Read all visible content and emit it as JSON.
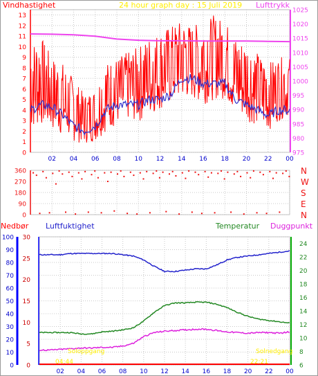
{
  "colors": {
    "wind": "#ff0000",
    "wind_avg": "#3333cc",
    "pressure": "#ee44ee",
    "direction": "#ee1111",
    "humidity": "#2222cc",
    "temperature": "#228822",
    "dewpoint": "#dd22dd",
    "rain": "#ff0000",
    "rain_axis": "#0000ff",
    "axis_green": "#00aa00",
    "sun_text": "#ffee00",
    "grid": "#c8c8c8"
  },
  "top_chart": {
    "title": "24 hour graph day : 15 Juli 2019",
    "left_label": "Vindhastighet",
    "right_label": "Lufttrykk"
  },
  "bottom_chart": {
    "rain_label": "Nedbør",
    "humidity_label": "Luftfuktighet",
    "temp_label": "Temperatur",
    "dew_label": "Duggpunkt",
    "sunrise_label": "Soloppgang",
    "sunset_label": "Solnedgang",
    "sunrise_time": "04:44",
    "sunset_time": "22:21"
  },
  "chart_data": [
    {
      "type": "line",
      "x_ticks": [
        "02",
        "04",
        "06",
        "08",
        "10",
        "12",
        "14",
        "16",
        "18",
        "20",
        "22",
        "00"
      ],
      "y_left_ticks": [
        "0",
        "1",
        "2",
        "3",
        "4",
        "5",
        "6",
        "7",
        "8",
        "9",
        "10",
        "11",
        "12",
        "13"
      ],
      "y_right_ticks": [
        "975",
        "980",
        "985",
        "990",
        "995",
        "1000",
        "1005",
        "1010",
        "1015",
        "1020",
        "1025"
      ],
      "ylim_left": [
        0,
        13.5
      ],
      "ylim_right": [
        975,
        1025
      ],
      "series": [
        {
          "name": "Vindhastighet",
          "axis": "left",
          "hours": [
            0,
            1,
            2,
            3,
            4,
            5,
            6,
            7,
            8,
            9,
            10,
            11,
            12,
            13,
            14,
            15,
            16,
            17,
            18,
            19,
            20,
            21,
            22,
            23,
            24
          ],
          "values": [
            5.5,
            6.5,
            5,
            4.5,
            3,
            2.2,
            2.8,
            4.8,
            5,
            5.5,
            5.2,
            6,
            6.5,
            7,
            8.5,
            8.5,
            7.5,
            8,
            8,
            6,
            5.5,
            5,
            4.5,
            5,
            6
          ],
          "max_values": [
            10.5,
            11,
            9,
            8.5,
            7,
            5.5,
            6,
            8.5,
            9,
            9.5,
            10,
            11,
            11.5,
            12,
            12.5,
            12,
            12.5,
            13,
            12.5,
            11,
            10.5,
            9.5,
            8.5,
            9,
            9
          ],
          "min_values": [
            2,
            2.5,
            2,
            1.5,
            1,
            0.8,
            1,
            2,
            2.5,
            3,
            2.8,
            3.5,
            4,
            4.5,
            5,
            5,
            4.5,
            5,
            5,
            3.5,
            3,
            2.5,
            2,
            3,
            3.5
          ]
        },
        {
          "name": "Vindhastighet",
          "axis": "left",
          "hours": [
            0,
            1,
            2,
            3,
            4,
            5,
            6,
            7,
            8,
            9,
            10,
            11,
            12,
            13,
            14,
            15,
            16,
            17,
            18,
            19,
            20,
            21,
            22,
            23,
            24
          ],
          "values": [
            4,
            4.5,
            4.3,
            3.5,
            2.5,
            2,
            2.5,
            4,
            4.5,
            4.5,
            4.5,
            5,
            5,
            5.5,
            7,
            7,
            6.5,
            6.5,
            6.5,
            5,
            4.5,
            4,
            3.5,
            4,
            4
          ]
        },
        {
          "name": "Lufttrykk",
          "axis": "right",
          "hours": [
            0,
            2,
            4,
            6,
            8,
            10,
            12,
            14,
            16,
            18,
            20,
            22,
            24
          ],
          "values": [
            1016.5,
            1016.4,
            1016.2,
            1015.7,
            1014.7,
            1014.3,
            1014.1,
            1014.1,
            1014.0,
            1014.0,
            1014.0,
            1013.9,
            1013.8
          ]
        }
      ]
    },
    {
      "type": "scatter",
      "x_ticks": [
        "02",
        "04",
        "06",
        "08",
        "10",
        "12",
        "14",
        "16",
        "18",
        "20",
        "22",
        "00"
      ],
      "y_ticks": [
        "0",
        "90",
        "180",
        "270",
        "360"
      ],
      "y_right_ticks": [
        "N",
        "W",
        "S",
        "E",
        "N"
      ],
      "ylim": [
        0,
        360
      ],
      "series": [
        {
          "name": "Vindretning",
          "hours": [
            0.2,
            0.5,
            0.8,
            1.1,
            1.4,
            1.7,
            2.0,
            2.3,
            2.6,
            2.9,
            3.2,
            3.5,
            3.8,
            4.1,
            4.4,
            4.7,
            5.0,
            5.3,
            5.6,
            5.9,
            6.2,
            6.5,
            6.8,
            7.1,
            7.4,
            7.7,
            8.0,
            8.3,
            8.6,
            8.9,
            9.2,
            9.5,
            9.8,
            10.1,
            10.4,
            10.7,
            11.0,
            11.3,
            11.6,
            11.9,
            12.2,
            12.5,
            12.8,
            13.1,
            13.4,
            13.7,
            14.0,
            14.3,
            14.6,
            14.9,
            15.2,
            15.5,
            15.8,
            16.1,
            16.4,
            16.7,
            17.0,
            17.3,
            17.6,
            17.9,
            18.2,
            18.5,
            18.8,
            19.1,
            19.4,
            19.7,
            20.0,
            20.3,
            20.6,
            20.9,
            21.2,
            21.5,
            21.8,
            22.1,
            22.4,
            22.7,
            23.0,
            23.3,
            23.6,
            23.9
          ],
          "values": [
            340,
            320,
            10,
            350,
            300,
            15,
            335,
            250,
            355,
            330,
            20,
            345,
            310,
            5,
            340,
            290,
            350,
            20,
            325,
            355,
            300,
            15,
            340,
            270,
            345,
            30,
            330,
            355,
            310,
            10,
            345,
            320,
            5,
            340,
            290,
            350,
            15,
            335,
            355,
            300,
            345,
            25,
            330,
            350,
            315,
            5,
            340,
            295,
            355,
            20,
            345,
            325,
            10,
            350,
            305,
            340,
            15,
            335,
            355,
            290,
            345,
            20,
            330,
            350,
            310,
            5,
            340,
            300,
            355,
            15,
            345,
            325,
            10,
            350,
            295,
            340,
            20,
            335,
            355,
            310
          ]
        }
      ]
    },
    {
      "type": "line",
      "x_ticks": [
        "02",
        "04",
        "06",
        "08",
        "10",
        "12",
        "14",
        "16",
        "18",
        "20",
        "22",
        "00"
      ],
      "y_rain_ticks": [
        "0",
        "5",
        "10",
        "15",
        "20",
        "25",
        "30"
      ],
      "y_humidity_ticks": [
        "0",
        "10",
        "20",
        "30",
        "40",
        "50",
        "60",
        "70",
        "80",
        "90",
        "100"
      ],
      "y_temp_ticks": [
        "6",
        "8",
        "10",
        "12",
        "14",
        "16",
        "18",
        "20",
        "22",
        "24"
      ],
      "ylim_rain": [
        0,
        30
      ],
      "ylim_humidity": [
        0,
        100
      ],
      "ylim_temp": [
        6,
        25
      ],
      "series": [
        {
          "name": "Luftfuktighet",
          "axis": "humidity",
          "hours": [
            0,
            1,
            2,
            3,
            4,
            5,
            6,
            7,
            8,
            9,
            10,
            11,
            12,
            13,
            14,
            15,
            16,
            17,
            18,
            19,
            20,
            21,
            22,
            23,
            24
          ],
          "values": [
            86,
            86,
            86,
            87,
            87,
            87,
            87,
            87,
            86,
            85,
            82,
            77,
            73,
            73,
            74,
            75,
            75,
            78,
            82,
            84,
            85,
            86,
            87,
            88,
            89
          ]
        },
        {
          "name": "Temperatur",
          "axis": "temp",
          "hours": [
            0,
            1,
            2,
            3,
            4,
            5,
            6,
            7,
            8,
            9,
            10,
            11,
            12,
            13,
            14,
            15,
            16,
            17,
            18,
            19,
            20,
            21,
            22,
            23,
            24
          ],
          "values": [
            10.8,
            10.8,
            10.8,
            10.8,
            10.6,
            10.6,
            10.9,
            11.0,
            11.2,
            11.5,
            12.5,
            13.8,
            14.8,
            15.2,
            15.2,
            15.3,
            15.3,
            15.0,
            14.5,
            13.8,
            13.2,
            12.8,
            12.6,
            12.4,
            12.2
          ]
        },
        {
          "name": "Duggpunkt",
          "axis": "temp",
          "hours": [
            0,
            1,
            2,
            3,
            4,
            5,
            6,
            7,
            8,
            9,
            10,
            11,
            12,
            13,
            14,
            15,
            16,
            17,
            18,
            19,
            20,
            21,
            22,
            23,
            24
          ],
          "values": [
            8.2,
            8.2,
            8.3,
            8.4,
            8.5,
            8.5,
            8.6,
            8.6,
            8.8,
            9.2,
            10.2,
            10.8,
            11.0,
            11.1,
            11.2,
            11.3,
            11.3,
            11.1,
            10.9,
            10.8,
            10.7,
            10.8,
            10.8,
            10.7,
            10.9
          ]
        },
        {
          "name": "Nedbør",
          "axis": "rain",
          "hours": [
            0,
            24
          ],
          "values": [
            0,
            0
          ]
        }
      ]
    }
  ]
}
